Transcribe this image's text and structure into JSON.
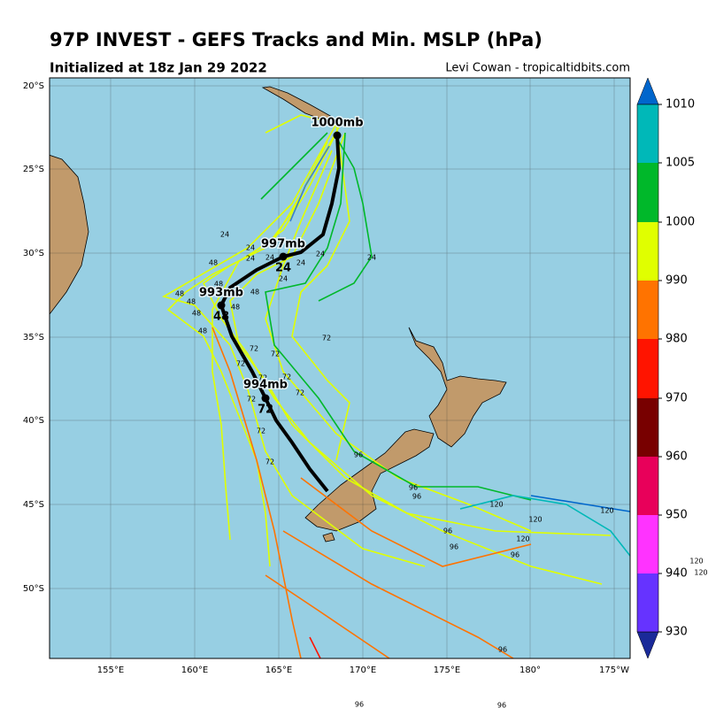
{
  "header": {
    "title": "97P INVEST - GEFS Tracks and Min. MSLP (hPa)",
    "subtitle": "Initialized at 18z Jan 29 2022",
    "credit": "Levi Cowan - tropicaltidbits.com"
  },
  "map": {
    "lat_labels": [
      "20°S",
      "25°S",
      "30°S",
      "35°S",
      "40°S",
      "45°S",
      "50°S"
    ],
    "lon_labels": [
      "155°E",
      "160°E",
      "165°E",
      "170°E",
      "175°E",
      "180°",
      "175°W"
    ],
    "mean_track": [
      {
        "pressure": "1000mb"
      },
      {
        "pressure": "997mb",
        "hour": "24"
      },
      {
        "pressure": "993mb",
        "hour": "48"
      },
      {
        "pressure": "994mb",
        "hour": "72"
      }
    ],
    "hour_labels": [
      "24",
      "24",
      "24",
      "24",
      "24",
      "24",
      "24",
      "24",
      "48",
      "48",
      "48",
      "48",
      "48",
      "48",
      "48",
      "48",
      "72",
      "72",
      "72",
      "72",
      "72",
      "72",
      "72",
      "72",
      "72",
      "72",
      "96",
      "96",
      "96",
      "96",
      "96",
      "120",
      "120",
      "120",
      "120",
      "96",
      "96",
      "120",
      "120"
    ]
  },
  "colorbar": {
    "ticks": [
      930,
      940,
      950,
      960,
      970,
      980,
      990,
      1000,
      1005,
      1010
    ]
  }
}
